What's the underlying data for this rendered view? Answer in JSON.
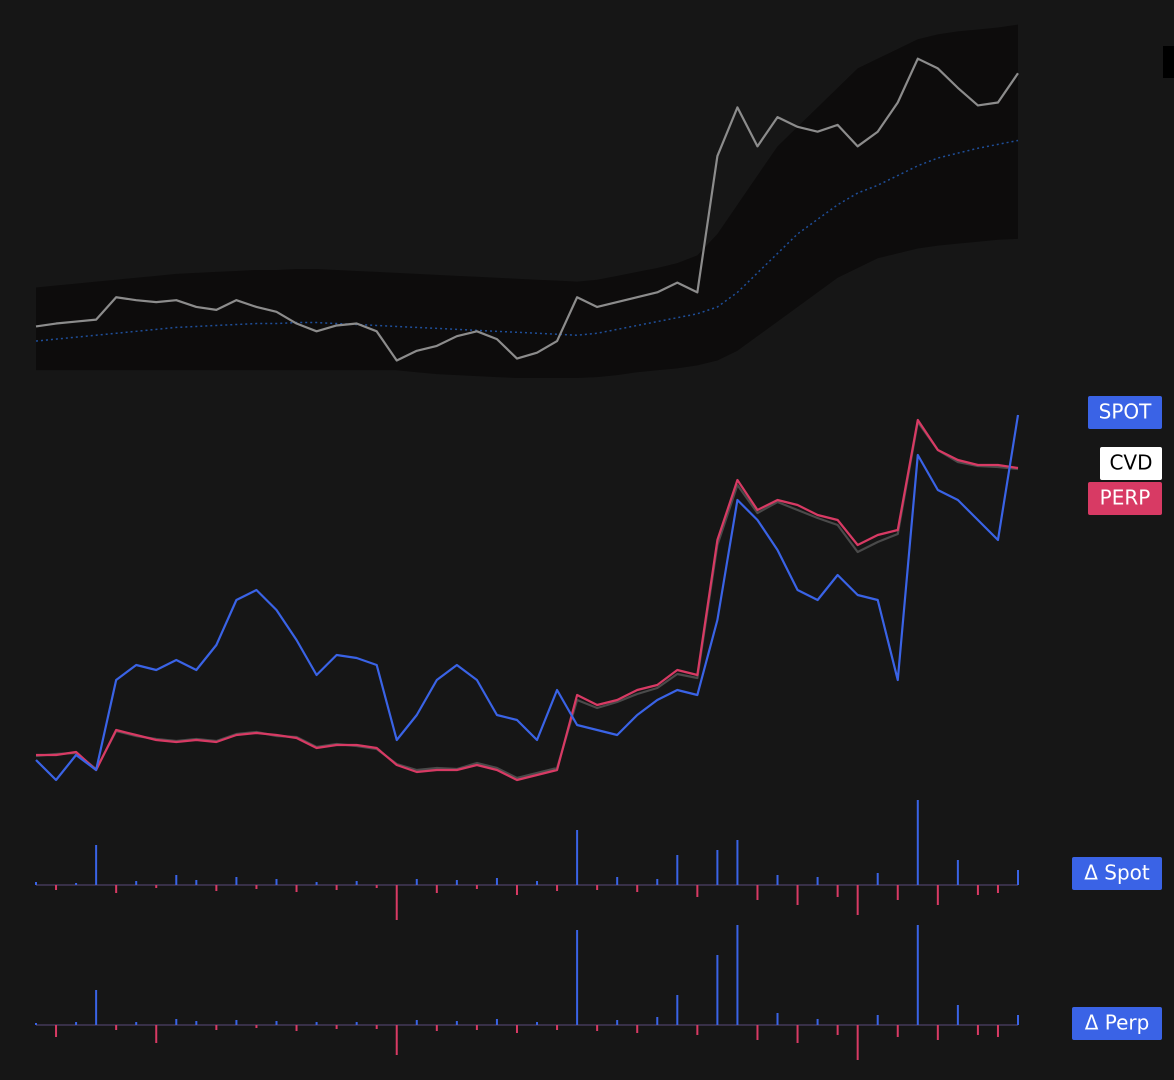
{
  "chart_data": [
    {
      "type": "line",
      "band": {
        "color": "#0d0c0c",
        "upper": [
          95,
          97,
          99,
          101,
          103,
          105,
          107,
          109,
          110,
          111,
          112,
          113,
          113,
          114,
          114,
          113,
          112,
          111,
          110,
          109,
          108,
          107,
          106,
          105,
          104,
          103,
          102,
          101,
          103,
          107,
          111,
          115,
          120,
          128,
          150,
          180,
          210,
          240,
          260,
          280,
          300,
          320,
          330,
          340,
          350,
          355,
          358,
          360,
          362,
          365
        ],
        "lower": [
          10,
          10,
          10,
          10,
          10,
          10,
          10,
          10,
          10,
          10,
          10,
          10,
          10,
          10,
          10,
          10,
          10,
          10,
          10,
          8,
          6,
          5,
          4,
          3,
          2,
          2,
          2,
          2,
          3,
          5,
          8,
          10,
          12,
          15,
          20,
          30,
          45,
          60,
          75,
          90,
          105,
          115,
          125,
          130,
          135,
          138,
          140,
          142,
          144,
          145
        ]
      },
      "series": [
        {
          "color": "#1f4f9a",
          "dashed": true,
          "values": [
            40,
            42,
            44,
            46,
            48,
            50,
            52,
            54,
            55,
            56,
            57,
            58,
            58,
            59,
            59,
            58,
            57,
            56,
            55,
            54,
            53,
            52,
            51,
            50,
            49,
            48,
            47,
            46,
            48,
            52,
            56,
            60,
            64,
            68,
            75,
            90,
            110,
            130,
            150,
            165,
            180,
            192,
            200,
            210,
            220,
            228,
            233,
            238,
            242,
            246
          ]
        },
        {
          "color": "#8c8c8c",
          "values": [
            55,
            58,
            60,
            62,
            85,
            82,
            80,
            82,
            75,
            72,
            82,
            75,
            70,
            58,
            50,
            56,
            58,
            50,
            20,
            30,
            35,
            45,
            50,
            42,
            22,
            28,
            40,
            85,
            75,
            80,
            85,
            90,
            100,
            90,
            230,
            280,
            240,
            270,
            260,
            255,
            262,
            240,
            255,
            285,
            330,
            320,
            300,
            282,
            285,
            315
          ]
        }
      ],
      "ylim": [
        0,
        380
      ]
    },
    {
      "type": "line",
      "series": [
        {
          "name": "CVD",
          "color": "#4a4a4a",
          "values": [
            44,
            46,
            47,
            31,
            69,
            64,
            61,
            59,
            61,
            59,
            66,
            68,
            64,
            63,
            53,
            56,
            54,
            51,
            36,
            30,
            32,
            31,
            37,
            32,
            22,
            27,
            32,
            100,
            92,
            98,
            106,
            112,
            126,
            122,
            255,
            315,
            287,
            298,
            290,
            282,
            275,
            248,
            258,
            266,
            378,
            350,
            338,
            334,
            333,
            331
          ]
        },
        {
          "name": "PERP",
          "color": "#d83a64",
          "values": [
            45,
            45,
            48,
            30,
            70,
            65,
            60,
            58,
            60,
            58,
            65,
            67,
            65,
            62,
            52,
            55,
            55,
            52,
            35,
            28,
            30,
            30,
            35,
            30,
            20,
            25,
            30,
            105,
            95,
            100,
            110,
            115,
            130,
            125,
            260,
            320,
            290,
            300,
            295,
            285,
            280,
            255,
            265,
            270,
            380,
            350,
            340,
            335,
            335,
            332
          ]
        },
        {
          "name": "SPOT",
          "color": "#3a63e6",
          "values": [
            40,
            20,
            45,
            30,
            120,
            135,
            130,
            140,
            130,
            155,
            200,
            210,
            190,
            160,
            125,
            145,
            142,
            135,
            60,
            85,
            120,
            135,
            120,
            85,
            80,
            60,
            110,
            75,
            70,
            65,
            85,
            100,
            110,
            105,
            180,
            300,
            280,
            250,
            210,
            200,
            225,
            205,
            200,
            120,
            345,
            310,
            300,
            280,
            260,
            385
          ]
        }
      ],
      "ylim": [
        0,
        400
      ]
    },
    {
      "type": "bar",
      "series": [
        {
          "name": "Δ Spot",
          "color": "#3a63e6",
          "negative_color": "#d83a64",
          "values": [
            3,
            -5,
            2,
            40,
            -8,
            4,
            -3,
            10,
            5,
            -6,
            8,
            -4,
            6,
            -7,
            3,
            -5,
            4,
            -3,
            -35,
            6,
            -8,
            5,
            -4,
            7,
            -10,
            4,
            -6,
            55,
            -5,
            8,
            -7,
            6,
            30,
            -12,
            35,
            45,
            -15,
            10,
            -20,
            8,
            -12,
            -30,
            12,
            -15,
            85,
            -20,
            25,
            -10,
            -8,
            15
          ]
        }
      ],
      "ylim": [
        -40,
        95
      ]
    },
    {
      "type": "bar",
      "series": [
        {
          "name": "Δ Perp",
          "color": "#3a63e6",
          "negative_color": "#d83a64",
          "values": [
            2,
            -12,
            3,
            35,
            -5,
            3,
            -18,
            6,
            4,
            -5,
            5,
            -3,
            4,
            -6,
            3,
            -4,
            3,
            -4,
            -30,
            5,
            -6,
            4,
            -5,
            6,
            -8,
            3,
            -5,
            95,
            -6,
            5,
            -8,
            8,
            30,
            -10,
            70,
            100,
            -15,
            12,
            -18,
            6,
            -10,
            -35,
            10,
            -12,
            100,
            -15,
            20,
            -10,
            -12,
            10
          ]
        }
      ],
      "ylim": [
        -45,
        100
      ]
    }
  ]
}
